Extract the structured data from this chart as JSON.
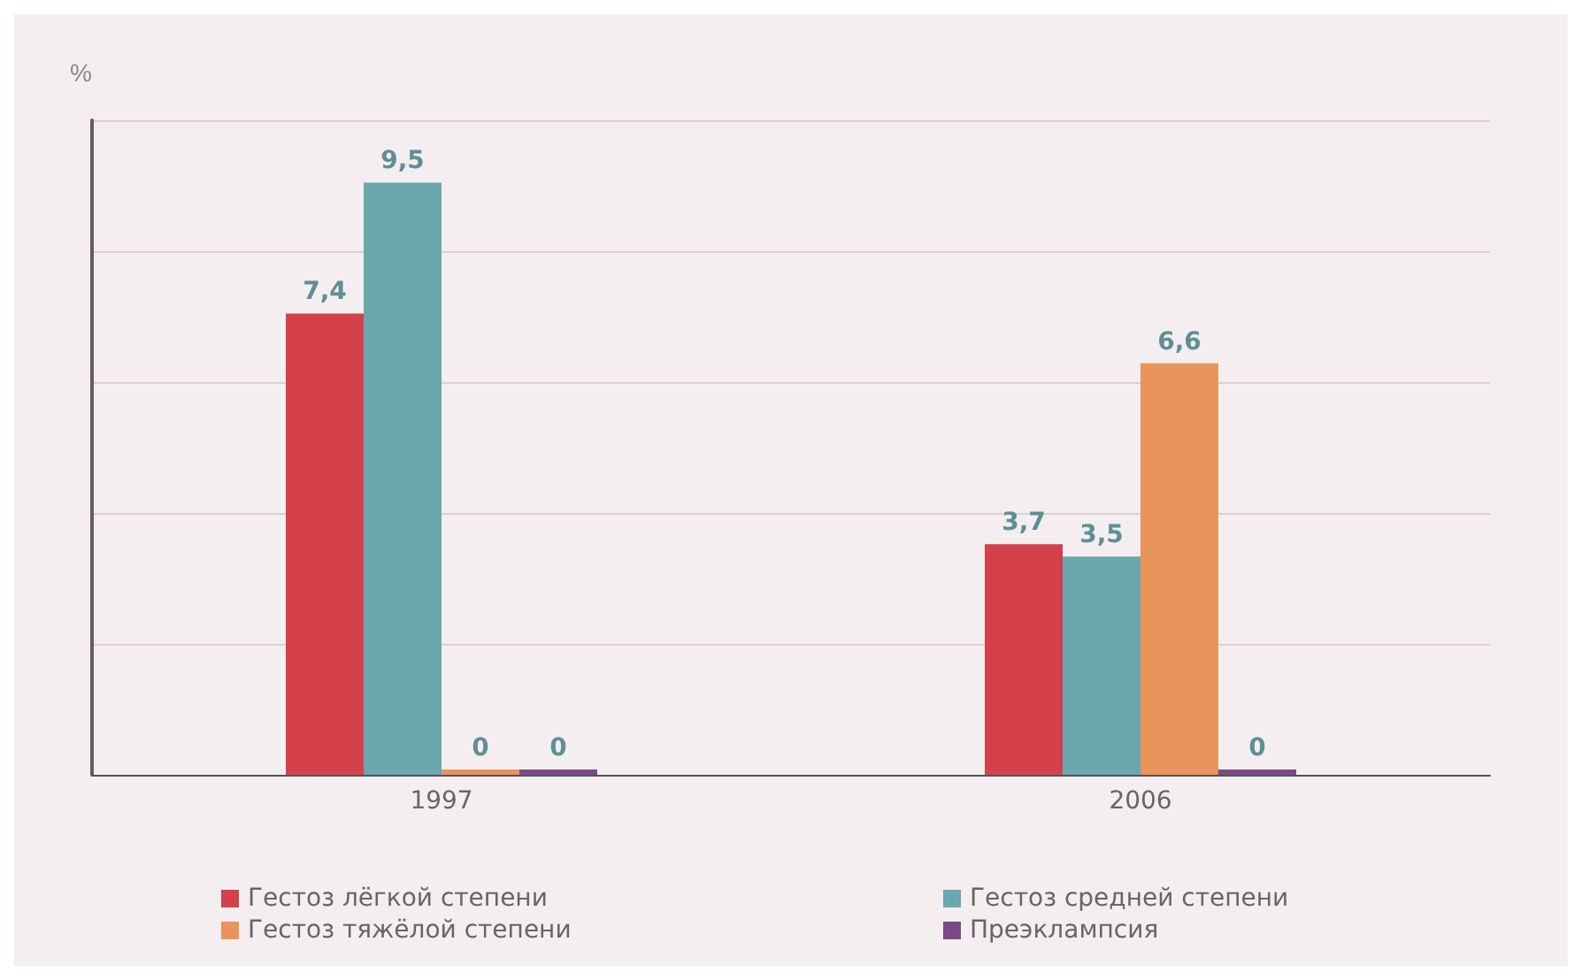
{
  "chart_data": {
    "type": "bar",
    "ylabel": "%",
    "categories": [
      "1997",
      "2006"
    ],
    "series": [
      {
        "name": "Гестоз лёгкой степени",
        "color": "#d4414a",
        "values": [
          7.4,
          3.7
        ],
        "value_labels": [
          "7,4",
          "3,7"
        ]
      },
      {
        "name": "Гестоз средней степени",
        "color": "#6aa7ae",
        "values": [
          9.5,
          3.5
        ],
        "value_labels": [
          "9,5",
          "3,5"
        ]
      },
      {
        "name": "Гестоз тяжёлой степени",
        "color": "#e8945a",
        "values": [
          0,
          6.6
        ],
        "value_labels": [
          "0",
          "6,6"
        ]
      },
      {
        "name": "Преэклампсия",
        "color": "#7b4a86",
        "values": [
          0,
          0
        ],
        "value_labels": [
          "0",
          "0"
        ]
      }
    ],
    "ylim": [
      0,
      10.5
    ],
    "yticks": [
      {
        "value": 0,
        "label": null
      },
      {
        "value": 2.1,
        "label": null
      },
      {
        "value": 4.2,
        "label": null
      },
      {
        "value": 6.3,
        "label": null
      },
      {
        "value": 8.4,
        "label": null
      },
      {
        "value": 10.5,
        "label": null
      }
    ],
    "grid": "y",
    "legend": "bottom",
    "tick_labels": "x"
  }
}
